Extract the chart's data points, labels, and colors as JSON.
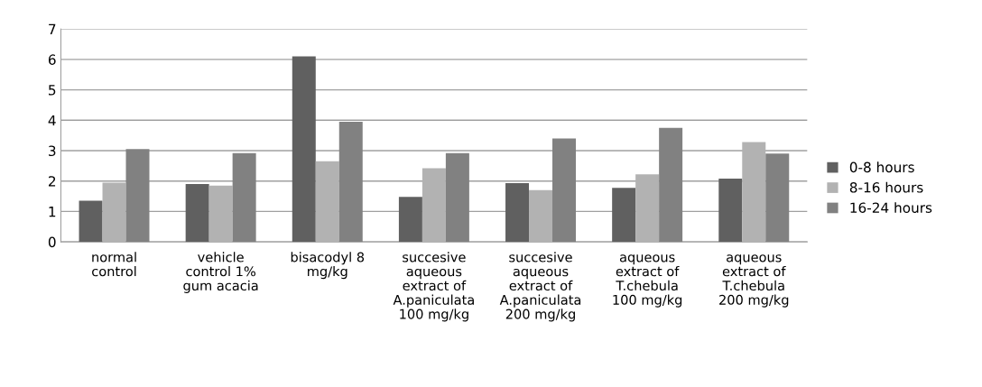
{
  "chart_data": {
    "type": "bar",
    "categories": [
      "normal\ncontrol",
      "vehicle\ncontrol 1%\ngum acacia",
      "bisacodyl 8\nmg/kg",
      "succesive\naqueous\nextract of\nA.paniculata\n100 mg/kg",
      "succesive\naqueous\nextract of\nA.paniculata\n200 mg/kg",
      "aqueous\nextract of\nT.chebula\n100 mg/kg",
      "aqueous\nextract of\nT.chebula\n200 mg/kg"
    ],
    "series": [
      {
        "name": "0-8 hours",
        "color": "#606060",
        "values": [
          1.35,
          1.9,
          6.1,
          1.48,
          1.93,
          1.78,
          2.08
        ]
      },
      {
        "name": "8-16 hours",
        "color": "#b2b2b2",
        "values": [
          1.95,
          1.85,
          2.65,
          2.42,
          1.7,
          2.22,
          3.28
        ]
      },
      {
        "name": "16-24 hours",
        "color": "#818181",
        "values": [
          3.05,
          2.92,
          3.95,
          2.92,
          3.4,
          3.75,
          2.9
        ]
      }
    ],
    "ylim": [
      0,
      7
    ],
    "yticks": [
      0,
      1,
      2,
      3,
      4,
      5,
      6,
      7
    ],
    "grid": "y",
    "legend": "right"
  }
}
